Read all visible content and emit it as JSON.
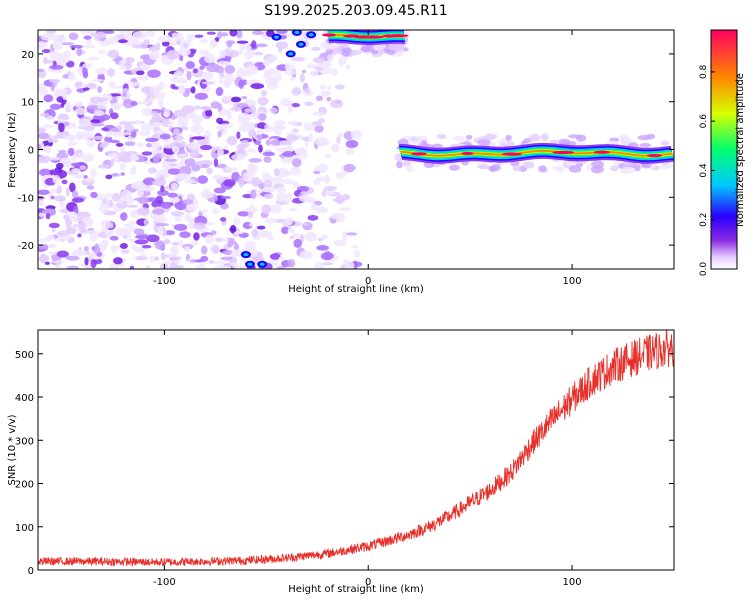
{
  "title": "S199.2025.203.09.45.R11",
  "chart_data": [
    {
      "type": "heatmap",
      "xlabel": "Height of straight line (km)",
      "ylabel": "Frequency (Hz)",
      "xlim": [
        -162,
        150
      ],
      "ylim": [
        -25,
        25
      ],
      "xticks": [
        -100,
        0,
        100
      ],
      "yticks": [
        -20,
        -10,
        0,
        10,
        20
      ],
      "grid": false,
      "colorbar": {
        "label": "Normalized spectral amplitude",
        "range": [
          0,
          0.97
        ],
        "ticks": [
          0.0,
          0.2,
          0.4,
          0.6,
          0.8
        ],
        "colors": [
          "#ffffff",
          "#e6ccff",
          "#8a2be2",
          "#2a00ff",
          "#00c8ff",
          "#00ff70",
          "#d8ff00",
          "#ff8800",
          "#ff0060"
        ]
      },
      "features": [
        {
          "kind": "noise",
          "x_range": [
            -162,
            -20
          ],
          "y_range": [
            -25,
            25
          ],
          "amplitude": 0.12
        },
        {
          "kind": "band",
          "x_range": [
            -20,
            18
          ],
          "y_center": 23.5,
          "amplitude": 0.95
        },
        {
          "kind": "band",
          "x_range": [
            15,
            150
          ],
          "y_center": -0.8,
          "amplitude": 0.95
        }
      ]
    },
    {
      "type": "line",
      "xlabel": "Height of straight line (km)",
      "ylabel": "SNR (10 * v/v)",
      "xlim": [
        -162,
        150
      ],
      "ylim": [
        0,
        555
      ],
      "xticks": [
        -100,
        0,
        100
      ],
      "yticks": [
        0,
        100,
        200,
        300,
        400,
        500
      ],
      "grid": false,
      "color": "#e8302b",
      "series": [
        {
          "x": [
            -162,
            -140,
            -120,
            -100,
            -80,
            -60,
            -40,
            -20,
            0,
            10,
            20,
            30,
            40,
            50,
            60,
            70,
            80,
            90,
            100,
            110,
            120,
            130,
            140,
            150
          ],
          "y": [
            20,
            20,
            19,
            18,
            20,
            22,
            28,
            38,
            55,
            68,
            82,
            100,
            125,
            155,
            185,
            225,
            290,
            345,
            395,
            440,
            470,
            490,
            505,
            515
          ]
        }
      ]
    }
  ]
}
